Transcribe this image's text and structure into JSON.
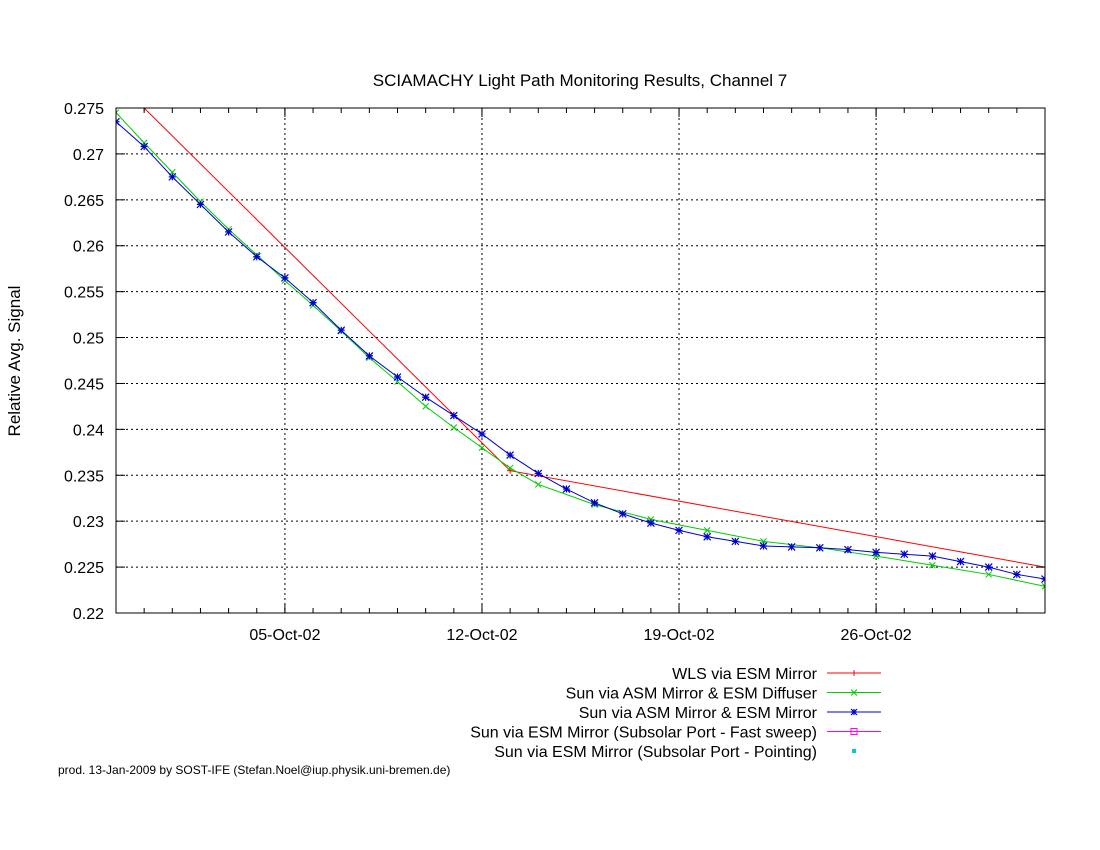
{
  "chart_data": {
    "type": "line",
    "title": "SCIAMACHY Light Path Monitoring Results, Channel 7",
    "xlabel": "",
    "ylabel": "Relative Avg. Signal",
    "x_axis": "date",
    "xlim": [
      "2002-09-29",
      "2002-11-01"
    ],
    "ylim": [
      0.22,
      0.275
    ],
    "yticks": [
      "0.22",
      "0.225",
      "0.23",
      "0.235",
      "0.24",
      "0.245",
      "0.25",
      "0.255",
      "0.26",
      "0.265",
      "0.27",
      "0.275"
    ],
    "xticks": [
      {
        "x": "2002-10-05",
        "label": "05-Oct-02"
      },
      {
        "x": "2002-10-12",
        "label": "12-Oct-02"
      },
      {
        "x": "2002-10-19",
        "label": "19-Oct-02"
      },
      {
        "x": "2002-10-26",
        "label": "26-Oct-02"
      }
    ],
    "grid": true,
    "legend_position": "bottom-right, below plot",
    "series": [
      {
        "name": "WLS via ESM Mirror",
        "color": "#ff0000",
        "marker": "plus",
        "style": "line",
        "x": [
          "2002-09-30",
          "2002-10-13",
          "2002-11-01"
        ],
        "y": [
          0.275,
          0.2355,
          0.225
        ]
      },
      {
        "name": "Sun via ASM Mirror & ESM Diffuser",
        "color": "#00cc00",
        "marker": "cross",
        "style": "line",
        "x": [
          "2002-09-29",
          "2002-09-30",
          "2002-10-01",
          "2002-10-02",
          "2002-10-03",
          "2002-10-04",
          "2002-10-05",
          "2002-10-06",
          "2002-10-07",
          "2002-10-08",
          "2002-10-09",
          "2002-10-10",
          "2002-10-11",
          "2002-10-12",
          "2002-10-13",
          "2002-10-14",
          "2002-10-16",
          "2002-10-18",
          "2002-10-20",
          "2002-10-22",
          "2002-10-24",
          "2002-10-26",
          "2002-10-28",
          "2002-10-30",
          "2002-11-01"
        ],
        "y": [
          0.2745,
          0.2712,
          0.268,
          0.2648,
          0.2618,
          0.259,
          0.2562,
          0.2535,
          0.2507,
          0.2478,
          0.2452,
          0.2425,
          0.2402,
          0.238,
          0.2358,
          0.234,
          0.2318,
          0.2302,
          0.229,
          0.2278,
          0.2271,
          0.2262,
          0.2252,
          0.2242,
          0.2229
        ]
      },
      {
        "name": "Sun via ASM Mirror & ESM Mirror",
        "color": "#0000cc",
        "marker": "star",
        "style": "line",
        "x": [
          "2002-09-29",
          "2002-09-30",
          "2002-10-01",
          "2002-10-02",
          "2002-10-03",
          "2002-10-04",
          "2002-10-05",
          "2002-10-06",
          "2002-10-07",
          "2002-10-08",
          "2002-10-09",
          "2002-10-10",
          "2002-10-11",
          "2002-10-12",
          "2002-10-13",
          "2002-10-14",
          "2002-10-15",
          "2002-10-16",
          "2002-10-17",
          "2002-10-18",
          "2002-10-19",
          "2002-10-20",
          "2002-10-21",
          "2002-10-22",
          "2002-10-23",
          "2002-10-24",
          "2002-10-25",
          "2002-10-26",
          "2002-10-27",
          "2002-10-28",
          "2002-10-29",
          "2002-10-30",
          "2002-10-31",
          "2002-11-01"
        ],
        "y": [
          0.2735,
          0.2708,
          0.2675,
          0.2645,
          0.2615,
          0.2588,
          0.2565,
          0.2538,
          0.2508,
          0.248,
          0.2457,
          0.2435,
          0.2415,
          0.2395,
          0.2372,
          0.2352,
          0.2335,
          0.232,
          0.2308,
          0.2298,
          0.229,
          0.2283,
          0.2278,
          0.2273,
          0.2272,
          0.2271,
          0.2269,
          0.2266,
          0.2264,
          0.2262,
          0.2256,
          0.225,
          0.2242,
          0.2237
        ]
      },
      {
        "name": "Sun via ESM Mirror (Subsolar Port - Fast sweep)",
        "color": "#ff00ff",
        "marker": "square",
        "style": "line",
        "x": [],
        "y": []
      },
      {
        "name": "Sun via ESM Mirror (Subsolar Port - Pointing)",
        "color": "#00cccc",
        "marker": "dot",
        "style": "points",
        "x": [],
        "y": []
      }
    ]
  },
  "footer": "prod. 13-Jan-2009 by SOST-IFE (Stefan.Noel@iup.physik.uni-bremen.de)"
}
